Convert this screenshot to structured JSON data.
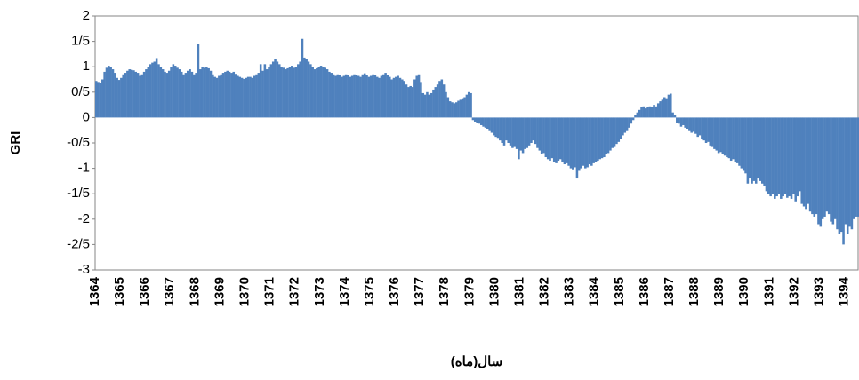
{
  "chart_data": {
    "type": "bar",
    "y_label": "GRI",
    "x_label": "سال(ماه)",
    "color": "#4f81bd",
    "ylim": [
      -3,
      2
    ],
    "yticks": [
      2,
      {
        "value": 1.5,
        "label": "1/5"
      },
      1,
      {
        "value": 0.5,
        "label": "0/5"
      },
      0,
      {
        "value": -0.5,
        "label": "-0/5"
      },
      -1,
      {
        "value": -1.5,
        "label": "-1/5"
      },
      -2,
      {
        "value": -2.5,
        "label": "-2/5"
      },
      -3
    ],
    "categories": [
      "1364",
      null,
      null,
      null,
      null,
      null,
      null,
      null,
      null,
      null,
      null,
      null,
      "1365",
      null,
      null,
      null,
      null,
      null,
      null,
      null,
      null,
      null,
      null,
      null,
      "1366",
      null,
      null,
      null,
      null,
      null,
      null,
      null,
      null,
      null,
      null,
      null,
      "1367",
      null,
      null,
      null,
      null,
      null,
      null,
      null,
      null,
      null,
      null,
      null,
      "1368",
      null,
      null,
      null,
      null,
      null,
      null,
      null,
      null,
      null,
      null,
      null,
      "1369",
      null,
      null,
      null,
      null,
      null,
      null,
      null,
      null,
      null,
      null,
      null,
      "1370",
      null,
      null,
      null,
      null,
      null,
      null,
      null,
      null,
      null,
      null,
      null,
      "1371",
      null,
      null,
      null,
      null,
      null,
      null,
      null,
      null,
      null,
      null,
      null,
      "1372",
      null,
      null,
      null,
      null,
      null,
      null,
      null,
      null,
      null,
      null,
      null,
      "1373",
      null,
      null,
      null,
      null,
      null,
      null,
      null,
      null,
      null,
      null,
      null,
      "1374",
      null,
      null,
      null,
      null,
      null,
      null,
      null,
      null,
      null,
      null,
      null,
      "1375",
      null,
      null,
      null,
      null,
      null,
      null,
      null,
      null,
      null,
      null,
      null,
      "1376",
      null,
      null,
      null,
      null,
      null,
      null,
      null,
      null,
      null,
      null,
      null,
      "1377",
      null,
      null,
      null,
      null,
      null,
      null,
      null,
      null,
      null,
      null,
      null,
      "1378",
      null,
      null,
      null,
      null,
      null,
      null,
      null,
      null,
      null,
      null,
      null,
      "1379",
      null,
      null,
      null,
      null,
      null,
      null,
      null,
      null,
      null,
      null,
      null,
      "1380",
      null,
      null,
      null,
      null,
      null,
      null,
      null,
      null,
      null,
      null,
      null,
      "1381",
      null,
      null,
      null,
      null,
      null,
      null,
      null,
      null,
      null,
      null,
      null,
      "1382",
      null,
      null,
      null,
      null,
      null,
      null,
      null,
      null,
      null,
      null,
      null,
      "1383",
      null,
      null,
      null,
      null,
      null,
      null,
      null,
      null,
      null,
      null,
      null,
      "1384",
      null,
      null,
      null,
      null,
      null,
      null,
      null,
      null,
      null,
      null,
      null,
      "1385",
      null,
      null,
      null,
      null,
      null,
      null,
      null,
      null,
      null,
      null,
      null,
      "1386",
      null,
      null,
      null,
      null,
      null,
      null,
      null,
      null,
      null,
      null,
      null,
      "1387",
      null,
      null,
      null,
      null,
      null,
      null,
      null,
      null,
      null,
      null,
      null,
      "1388",
      null,
      null,
      null,
      null,
      null,
      null,
      null,
      null,
      null,
      null,
      null,
      "1389",
      null,
      null,
      null,
      null,
      null,
      null,
      null,
      null,
      null,
      null,
      null,
      "1390",
      null,
      null,
      null,
      null,
      null,
      null,
      null,
      null,
      null,
      null,
      null,
      "1391",
      null,
      null,
      null,
      null,
      null,
      null,
      null,
      null,
      null,
      null,
      null,
      "1392",
      null,
      null,
      null,
      null,
      null,
      null,
      null,
      null,
      null,
      null,
      null,
      "1393",
      null,
      null,
      null,
      null,
      null,
      null,
      null,
      null,
      null,
      null,
      null,
      "1394",
      null,
      null,
      null,
      null,
      null,
      null
    ],
    "values": [
      0.72,
      0.7,
      0.68,
      0.75,
      0.9,
      0.98,
      1.02,
      1.0,
      0.95,
      0.88,
      0.78,
      0.74,
      0.78,
      0.85,
      0.88,
      0.92,
      0.95,
      0.94,
      0.93,
      0.9,
      0.88,
      0.82,
      0.85,
      0.9,
      0.95,
      1.0,
      1.05,
      1.08,
      1.1,
      1.17,
      1.05,
      1.0,
      0.95,
      0.9,
      0.88,
      0.92,
      1.0,
      1.05,
      1.02,
      0.98,
      0.95,
      0.9,
      0.85,
      0.88,
      0.92,
      0.95,
      0.9,
      0.85,
      0.88,
      1.45,
      0.95,
      1.0,
      0.98,
      1.0,
      0.97,
      0.92,
      0.85,
      0.8,
      0.78,
      0.82,
      0.85,
      0.88,
      0.9,
      0.92,
      0.9,
      0.88,
      0.9,
      0.86,
      0.82,
      0.8,
      0.78,
      0.76,
      0.78,
      0.8,
      0.8,
      0.78,
      0.82,
      0.85,
      0.88,
      1.05,
      0.92,
      1.05,
      0.95,
      1.0,
      1.05,
      1.1,
      1.15,
      1.1,
      1.05,
      1.0,
      0.98,
      0.95,
      0.97,
      1.0,
      1.02,
      0.98,
      1.0,
      1.05,
      1.1,
      1.55,
      1.18,
      1.15,
      1.1,
      1.05,
      1.0,
      0.95,
      0.97,
      1.0,
      1.02,
      1.0,
      0.98,
      0.95,
      0.9,
      0.88,
      0.85,
      0.82,
      0.85,
      0.83,
      0.8,
      0.82,
      0.85,
      0.83,
      0.8,
      0.82,
      0.85,
      0.84,
      0.82,
      0.8,
      0.85,
      0.87,
      0.84,
      0.8,
      0.82,
      0.85,
      0.83,
      0.8,
      0.78,
      0.82,
      0.85,
      0.88,
      0.84,
      0.8,
      0.75,
      0.78,
      0.8,
      0.82,
      0.78,
      0.75,
      0.72,
      0.65,
      0.6,
      0.62,
      0.6,
      0.75,
      0.82,
      0.85,
      0.7,
      0.48,
      0.45,
      0.5,
      0.45,
      0.48,
      0.55,
      0.6,
      0.65,
      0.72,
      0.75,
      0.65,
      0.5,
      0.4,
      0.32,
      0.3,
      0.28,
      0.3,
      0.33,
      0.35,
      0.38,
      0.4,
      0.45,
      0.5,
      0.48,
      -0.05,
      -0.08,
      -0.1,
      -0.12,
      -0.15,
      -0.18,
      -0.2,
      -0.22,
      -0.25,
      -0.3,
      -0.35,
      -0.38,
      -0.4,
      -0.45,
      -0.5,
      -0.55,
      -0.45,
      -0.5,
      -0.55,
      -0.6,
      -0.58,
      -0.62,
      -0.82,
      -0.65,
      -0.7,
      -0.62,
      -0.6,
      -0.55,
      -0.5,
      -0.45,
      -0.52,
      -0.6,
      -0.65,
      -0.72,
      -0.7,
      -0.78,
      -0.82,
      -0.85,
      -0.8,
      -0.88,
      -0.9,
      -0.85,
      -0.82,
      -0.88,
      -0.92,
      -0.9,
      -0.95,
      -1.0,
      -1.02,
      -0.98,
      -1.2,
      -1.05,
      -1.0,
      -0.95,
      -1.0,
      -0.98,
      -0.92,
      -0.95,
      -0.9,
      -0.88,
      -0.85,
      -0.82,
      -0.8,
      -0.78,
      -0.72,
      -0.7,
      -0.65,
      -0.6,
      -0.58,
      -0.52,
      -0.48,
      -0.42,
      -0.35,
      -0.3,
      -0.25,
      -0.2,
      -0.12,
      -0.05,
      0.05,
      0.1,
      0.15,
      0.2,
      0.22,
      0.18,
      0.2,
      0.22,
      0.2,
      0.25,
      0.22,
      0.28,
      0.32,
      0.35,
      0.4,
      0.38,
      0.45,
      0.47,
      0.1,
      0.05,
      -0.1,
      -0.12,
      -0.18,
      -0.15,
      -0.2,
      -0.22,
      -0.25,
      -0.3,
      -0.28,
      -0.32,
      -0.38,
      -0.35,
      -0.42,
      -0.45,
      -0.5,
      -0.48,
      -0.55,
      -0.58,
      -0.62,
      -0.65,
      -0.7,
      -0.68,
      -0.72,
      -0.75,
      -0.78,
      -0.8,
      -0.85,
      -0.82,
      -0.88,
      -0.9,
      -0.95,
      -1.0,
      -1.05,
      -1.1,
      -1.3,
      -1.2,
      -1.3,
      -1.25,
      -1.3,
      -1.2,
      -1.25,
      -1.3,
      -1.35,
      -1.45,
      -1.5,
      -1.55,
      -1.5,
      -1.6,
      -1.55,
      -1.5,
      -1.6,
      -1.55,
      -1.5,
      -1.58,
      -1.55,
      -1.6,
      -1.5,
      -1.65,
      -1.55,
      -1.45,
      -1.7,
      -1.75,
      -1.8,
      -1.7,
      -1.85,
      -1.9,
      -1.95,
      -1.9,
      -2.1,
      -2.15,
      -2.0,
      -1.95,
      -1.85,
      -1.9,
      -2.05,
      -2.1,
      -2.0,
      -2.2,
      -2.3,
      -2.25,
      -2.5,
      -2.1,
      -2.3,
      -2.15,
      -2.2,
      -2.0,
      -1.95,
      -1.95
    ]
  }
}
